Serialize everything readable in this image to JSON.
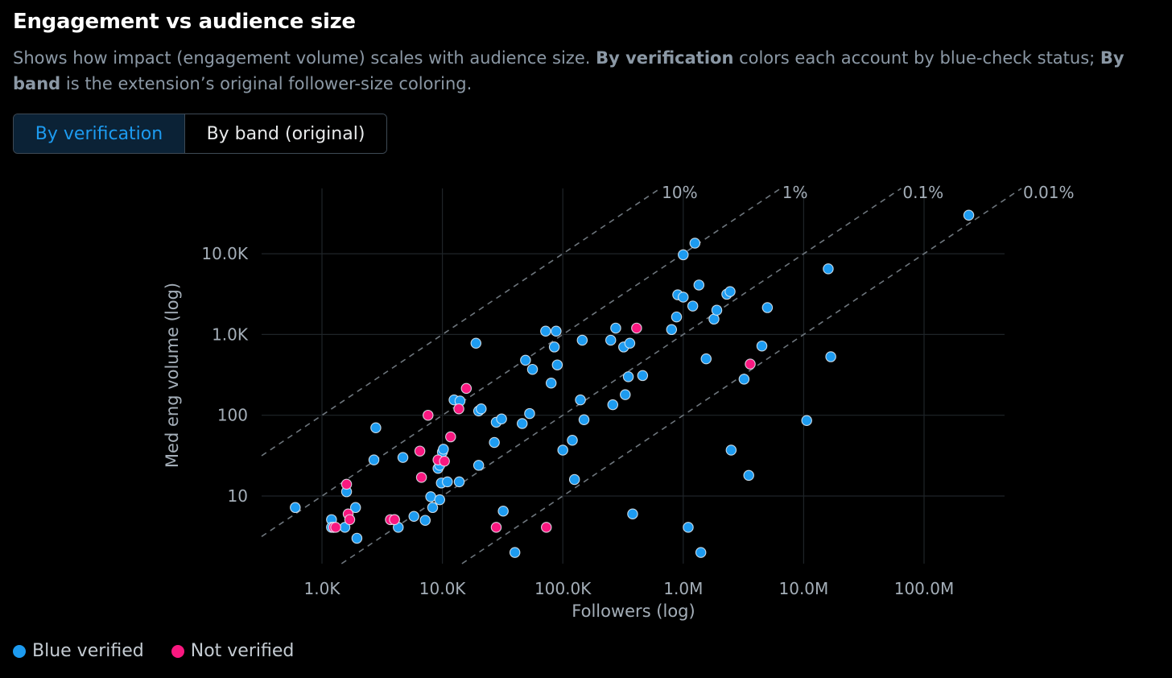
{
  "title": "Engagement vs audience size",
  "description": {
    "part1": "Shows how impact (engagement volume) scales with audience size. ",
    "bold1": "By verification",
    "part2": " colors each account by blue-check status; ",
    "bold2": "By band",
    "part3": " is the extension’s original follower-size coloring."
  },
  "toggle": {
    "option_verification": "By verification",
    "option_band": "By band (original)",
    "active": "verification"
  },
  "colors": {
    "verified": "#1d9bf0",
    "not_verified": "#f91880",
    "grid": "#1f2428",
    "diag": "#6e767d",
    "axis_text": "#a4aeb8"
  },
  "chart_data": {
    "type": "scatter",
    "xlabel": "Followers (log)",
    "ylabel": "Med eng volume (log)",
    "x_scale": "log",
    "y_scale": "log",
    "xlim": [
      150,
      5000000000
    ],
    "ylim": [
      1.4,
      33000
    ],
    "x_ticks": [
      {
        "value": 1000,
        "label": "1.0K"
      },
      {
        "value": 10000,
        "label": "10.0K"
      },
      {
        "value": 100000,
        "label": "100.0K"
      },
      {
        "value": 1000000,
        "label": "1.0M"
      },
      {
        "value": 10000000,
        "label": "10.0M"
      },
      {
        "value": 100000000,
        "label": "100.0M"
      }
    ],
    "y_ticks": [
      {
        "value": 10,
        "label": "10"
      },
      {
        "value": 100,
        "label": "100"
      },
      {
        "value": 1000,
        "label": "1.0K"
      },
      {
        "value": 10000,
        "label": "10.0K"
      }
    ],
    "reference_lines": [
      {
        "ratio": 0.1,
        "label": "10%"
      },
      {
        "ratio": 0.01,
        "label": "1%"
      },
      {
        "ratio": 0.001,
        "label": "0.1%"
      },
      {
        "ratio": 0.0001,
        "label": "0.01%"
      }
    ],
    "grid": true,
    "legend_position": "bottom-left",
    "series": [
      {
        "name": "Blue verified",
        "points": [
          [
            600,
            7.2
          ],
          [
            1200,
            5.1
          ],
          [
            1200,
            4.1
          ],
          [
            1250,
            4.1
          ],
          [
            1550,
            4.1
          ],
          [
            1600,
            11.3
          ],
          [
            1900,
            7.2
          ],
          [
            1950,
            3
          ],
          [
            2700,
            28
          ],
          [
            2800,
            70
          ],
          [
            4000,
            5.1
          ],
          [
            4300,
            4.1
          ],
          [
            4700,
            30
          ],
          [
            5800,
            5.6
          ],
          [
            7200,
            5
          ],
          [
            8000,
            9.8
          ],
          [
            8300,
            7.2
          ],
          [
            9200,
            22
          ],
          [
            9500,
            24
          ],
          [
            9800,
            14.5
          ],
          [
            9500,
            9
          ],
          [
            10000,
            35
          ],
          [
            10200,
            38
          ],
          [
            11000,
            15
          ],
          [
            13800,
            15
          ],
          [
            12500,
            155
          ],
          [
            14000,
            150
          ],
          [
            19000,
            780
          ],
          [
            20000,
            113
          ],
          [
            20000,
            24
          ],
          [
            21000,
            120
          ],
          [
            27000,
            46
          ],
          [
            28000,
            82
          ],
          [
            31000,
            90
          ],
          [
            32000,
            6.5
          ],
          [
            40000,
            2
          ],
          [
            46000,
            79
          ],
          [
            49000,
            480
          ],
          [
            53000,
            105
          ],
          [
            56000,
            370
          ],
          [
            72000,
            1100
          ],
          [
            80000,
            250
          ],
          [
            88000,
            1100
          ],
          [
            85000,
            700
          ],
          [
            90000,
            420
          ],
          [
            100000,
            37
          ],
          [
            120000,
            49
          ],
          [
            125000,
            16
          ],
          [
            140000,
            155
          ],
          [
            145000,
            850
          ],
          [
            150000,
            88
          ],
          [
            250000,
            850
          ],
          [
            260000,
            135
          ],
          [
            275000,
            1200
          ],
          [
            320000,
            700
          ],
          [
            330000,
            180
          ],
          [
            350000,
            300
          ],
          [
            360000,
            780
          ],
          [
            380000,
            6
          ],
          [
            460000,
            310
          ],
          [
            800000,
            1150
          ],
          [
            880000,
            1650
          ],
          [
            900000,
            3100
          ],
          [
            1000000,
            2900
          ],
          [
            1000000,
            9700
          ],
          [
            1100000,
            4.1
          ],
          [
            1200000,
            2250
          ],
          [
            1250000,
            13500
          ],
          [
            1350000,
            4100
          ],
          [
            1400000,
            2
          ],
          [
            1550000,
            500
          ],
          [
            1800000,
            1550
          ],
          [
            1900000,
            2000
          ],
          [
            2300000,
            3150
          ],
          [
            2450000,
            3400
          ],
          [
            2500000,
            37
          ],
          [
            3200000,
            280
          ],
          [
            3500000,
            18
          ],
          [
            4500000,
            720
          ],
          [
            5000000,
            2150
          ],
          [
            10600000,
            86
          ],
          [
            16000000,
            6500
          ],
          [
            16800000,
            530
          ],
          [
            235000000,
            30000
          ]
        ]
      },
      {
        "name": "Not verified",
        "points": [
          [
            1250,
            4.1
          ],
          [
            1300,
            4.1
          ],
          [
            1600,
            14
          ],
          [
            1650,
            6
          ],
          [
            1700,
            5.1
          ],
          [
            3700,
            5.1
          ],
          [
            4000,
            5.1
          ],
          [
            6500,
            36
          ],
          [
            6700,
            17
          ],
          [
            7600,
            100
          ],
          [
            9200,
            28
          ],
          [
            10400,
            27
          ],
          [
            11700,
            54
          ],
          [
            13700,
            120
          ],
          [
            15800,
            215
          ],
          [
            28000,
            4.1
          ],
          [
            73000,
            4.1
          ],
          [
            410000,
            1200
          ],
          [
            3600000,
            430
          ]
        ]
      }
    ]
  },
  "legend": {
    "verified_label": "Blue verified",
    "not_verified_label": "Not verified"
  }
}
